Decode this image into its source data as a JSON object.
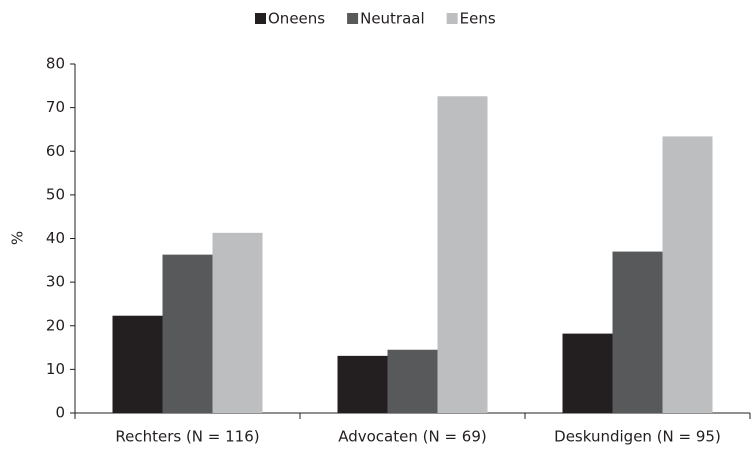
{
  "chart_data": {
    "type": "bar",
    "categories": [
      "Rechters (N = 116)",
      "Advocaten (N = 69)",
      "Deskundigen (N = 95)"
    ],
    "series": [
      {
        "name": "Oneens",
        "color": "#231f20",
        "values": [
          22.3,
          13.1,
          18.2
        ]
      },
      {
        "name": "Neutraal",
        "color": "#58595b",
        "values": [
          36.3,
          14.5,
          37
        ]
      },
      {
        "name": "Eens",
        "color": "#bcbec0",
        "values": [
          41.3,
          72.6,
          63.4
        ]
      }
    ],
    "y_label": "%",
    "ylim": [
      0,
      80
    ],
    "yticks": [
      0,
      10,
      20,
      30,
      40,
      50,
      60,
      70,
      80
    ],
    "legend": "top"
  }
}
